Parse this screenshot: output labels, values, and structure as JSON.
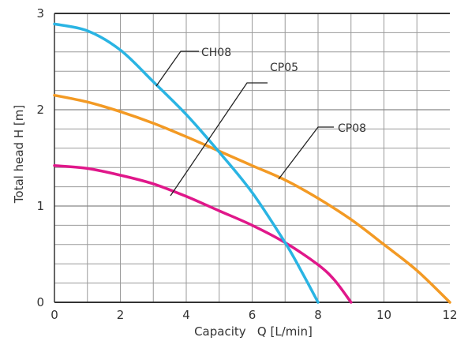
{
  "chart_data": {
    "type": "line",
    "title": "",
    "xlabel": "Capacity   Q [L/min]",
    "ylabel": "Total head H [m]",
    "xlim": [
      0,
      12
    ],
    "ylim": [
      0,
      3
    ],
    "x_ticks": [
      "0",
      "2",
      "4",
      "6",
      "8",
      "10",
      "12"
    ],
    "y_ticks": [
      "0",
      "1",
      "2",
      "3"
    ],
    "grid": true,
    "series": [
      {
        "name": "CH08",
        "color": "#2ab4e3",
        "x": [
          0,
          1,
          2,
          3,
          4,
          5,
          6,
          7,
          7.5,
          8
        ],
        "y": [
          2.89,
          2.82,
          2.62,
          2.29,
          1.95,
          1.56,
          1.14,
          0.62,
          0.32,
          0.0
        ]
      },
      {
        "name": "CP05",
        "color": "#e0178a",
        "x": [
          0,
          1,
          2,
          3,
          4,
          5,
          6,
          7,
          8,
          8.5,
          9
        ],
        "y": [
          1.42,
          1.39,
          1.32,
          1.23,
          1.1,
          0.95,
          0.8,
          0.62,
          0.39,
          0.23,
          0.0
        ]
      },
      {
        "name": "CP08",
        "color": "#f39a24",
        "x": [
          0,
          1,
          2,
          3,
          4,
          5,
          6,
          7,
          8,
          9,
          10,
          11,
          12
        ],
        "y": [
          2.15,
          2.08,
          1.98,
          1.86,
          1.72,
          1.57,
          1.42,
          1.27,
          1.08,
          0.86,
          0.6,
          0.33,
          0.0
        ]
      }
    ],
    "annotations": [
      {
        "series": "CH08",
        "text": "CH08"
      },
      {
        "series": "CP05",
        "text": "CP05"
      },
      {
        "series": "CP08",
        "text": "CP08"
      }
    ]
  }
}
